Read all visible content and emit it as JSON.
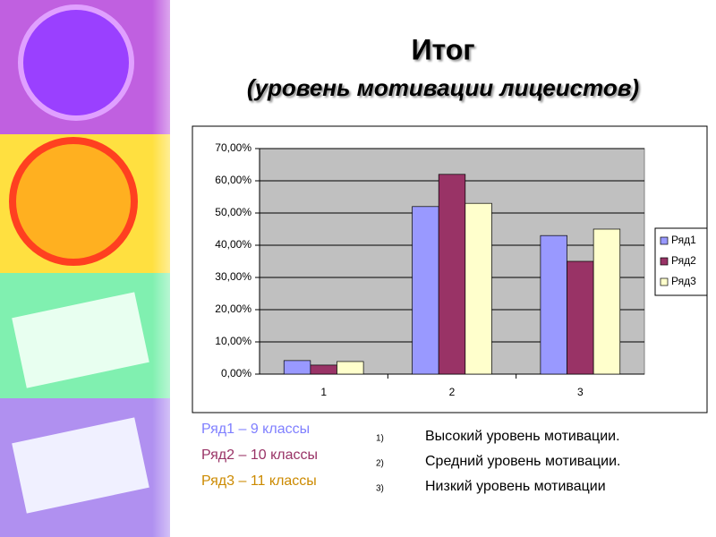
{
  "chart_data": {
    "type": "bar",
    "title": "Итог",
    "subtitle": "(уровень мотивации лицеистов)",
    "categories": [
      "1",
      "2",
      "3"
    ],
    "series": [
      {
        "name": "Ряд1",
        "color": "#9999ff",
        "values": [
          4.2,
          52,
          43
        ]
      },
      {
        "name": "Ряд2",
        "color": "#993366",
        "values": [
          2.8,
          62,
          35
        ]
      },
      {
        "name": "Ряд3",
        "color": "#ffffcc",
        "values": [
          3.9,
          53,
          45
        ]
      }
    ],
    "ylim": [
      0,
      70
    ],
    "yticks": [
      {
        "value": 0,
        "label": "0,00%"
      },
      {
        "value": 10,
        "label": "10,00%"
      },
      {
        "value": 20,
        "label": "20,00%"
      },
      {
        "value": 30,
        "label": "30,00%"
      },
      {
        "value": 40,
        "label": "40,00%"
      },
      {
        "value": 50,
        "label": "50,00%"
      },
      {
        "value": 60,
        "label": "60,00%"
      },
      {
        "value": 70,
        "label": "70,00%"
      }
    ],
    "grid": true,
    "legend": "right"
  },
  "notes": {
    "legend": [
      "Ряд1 – 9 классы",
      "Ряд2 – 10 классы",
      "Ряд3 – 11 классы"
    ],
    "items": [
      {
        "number": "1)",
        "text": "Высокий уровень мотивации."
      },
      {
        "number": "2)",
        "text": "Средний уровень мотивации."
      },
      {
        "number": "3)",
        "text": "Низкий уровень мотивации"
      }
    ]
  }
}
